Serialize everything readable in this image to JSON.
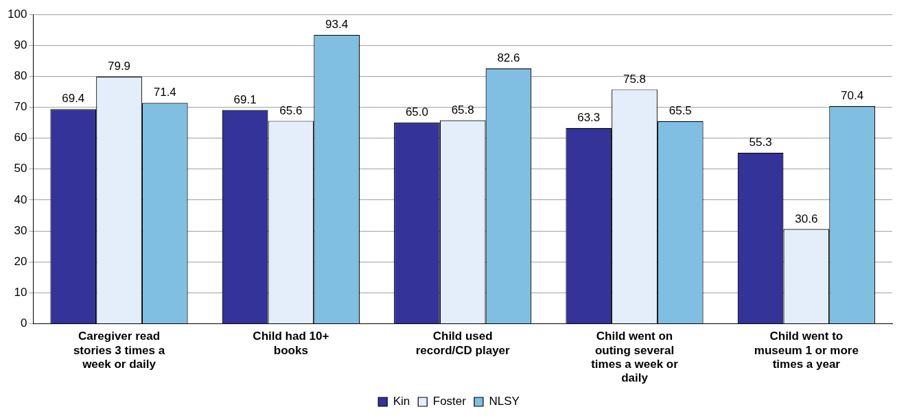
{
  "chart_data": {
    "type": "bar",
    "categories": [
      "Caregiver read stories 3 times a week or daily",
      "Child had 10+ books",
      "Child used record/CD player",
      "Child went on outing several times a week or daily",
      "Child went to museum 1 or more times a year"
    ],
    "series": [
      {
        "name": "Kin",
        "color": "#333399",
        "values": [
          69.4,
          69.1,
          65.0,
          63.3,
          55.3
        ],
        "value_labels": [
          "69.4",
          "69.1",
          "65.0",
          "63.3",
          "55.3"
        ]
      },
      {
        "name": "Foster",
        "color": "#e3eefa",
        "values": [
          79.9,
          65.6,
          65.8,
          75.8,
          30.6
        ],
        "value_labels": [
          "79.9",
          "65.6",
          "65.8",
          "75.8",
          "30.6"
        ]
      },
      {
        "name": "NLSY",
        "color": "#80bfe2",
        "values": [
          71.4,
          93.4,
          82.6,
          65.5,
          70.4
        ],
        "value_labels": [
          "71.4",
          "93.4",
          "82.6",
          "65.5",
          "70.4"
        ]
      }
    ],
    "ylim": [
      0,
      100
    ],
    "yticks": [
      0,
      10,
      20,
      30,
      40,
      50,
      60,
      70,
      80,
      90,
      100
    ],
    "grid": "y",
    "legend": "bottom"
  }
}
